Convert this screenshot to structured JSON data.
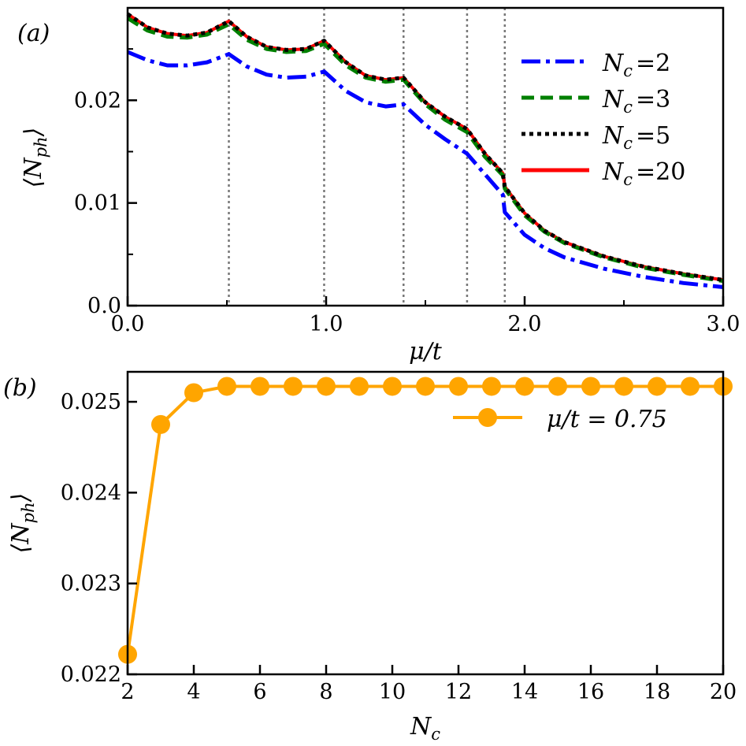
{
  "chart_data": [
    {
      "panel_label": "(a)",
      "type": "line",
      "xlabel": "μ/t",
      "ylabel": "⟨N_ph⟩",
      "ylabel_main": "⟨N",
      "ylabel_sub": "ph",
      "ylabel_close": "⟩",
      "xlim": [
        0.0,
        3.0
      ],
      "ylim": [
        0.0,
        0.029
      ],
      "x_ticks": [
        0.0,
        1.0,
        2.0,
        3.0
      ],
      "x_tick_labels": [
        "0.0",
        "1.0",
        "2.0",
        "3.0"
      ],
      "x_minor_ticks": [
        0.5,
        1.5,
        2.5
      ],
      "y_ticks": [
        0.0,
        0.01,
        0.02
      ],
      "y_tick_labels": [
        "0.0",
        "0.01",
        "0.02"
      ],
      "y_minor_ticks": [
        0.005,
        0.015,
        0.025
      ],
      "vlines": [
        0.51,
        0.99,
        1.39,
        1.71,
        1.9
      ],
      "legend_position": "top-right",
      "series": [
        {
          "name": "N_c =2",
          "legend_sub": "c",
          "legend_value": "=2",
          "color": "#0000ff",
          "style": "dashdot",
          "x": [
            0.0,
            0.1,
            0.2,
            0.3,
            0.4,
            0.51,
            0.6,
            0.7,
            0.8,
            0.9,
            0.99,
            1.1,
            1.2,
            1.3,
            1.39,
            1.5,
            1.6,
            1.71,
            1.8,
            1.89,
            1.9,
            2.0,
            2.1,
            2.2,
            2.4,
            2.6,
            2.8,
            3.0
          ],
          "y": [
            0.0247,
            0.0239,
            0.0234,
            0.0234,
            0.0237,
            0.0245,
            0.0233,
            0.0225,
            0.0222,
            0.0223,
            0.0228,
            0.0209,
            0.0198,
            0.0194,
            0.0196,
            0.0176,
            0.0162,
            0.0148,
            0.0128,
            0.0108,
            0.0091,
            0.0069,
            0.0056,
            0.0047,
            0.0036,
            0.0028,
            0.0022,
            0.0018
          ]
        },
        {
          "name": "N_c =3",
          "legend_sub": "c",
          "legend_value": "=3",
          "color": "#008000",
          "style": "dashed",
          "x": [
            0.0,
            0.1,
            0.2,
            0.3,
            0.4,
            0.51,
            0.6,
            0.7,
            0.8,
            0.9,
            0.99,
            1.1,
            1.2,
            1.3,
            1.39,
            1.5,
            1.6,
            1.71,
            1.8,
            1.89,
            1.9,
            2.0,
            2.1,
            2.2,
            2.4,
            2.6,
            2.8,
            3.0
          ],
          "y": [
            0.028,
            0.0268,
            0.0262,
            0.0261,
            0.0264,
            0.0274,
            0.0259,
            0.025,
            0.0247,
            0.0248,
            0.0255,
            0.0234,
            0.0222,
            0.0218,
            0.022,
            0.0196,
            0.0181,
            0.0169,
            0.0145,
            0.0127,
            0.0114,
            0.0088,
            0.0072,
            0.0061,
            0.0047,
            0.0037,
            0.003,
            0.0024
          ]
        },
        {
          "name": "N_c =5",
          "legend_sub": "c",
          "legend_value": "=5",
          "color": "#000000",
          "style": "dotted",
          "x": [
            0.0,
            0.1,
            0.2,
            0.3,
            0.4,
            0.51,
            0.6,
            0.7,
            0.8,
            0.9,
            0.99,
            1.1,
            1.2,
            1.3,
            1.39,
            1.5,
            1.6,
            1.71,
            1.8,
            1.89,
            1.9,
            2.0,
            2.1,
            2.2,
            2.4,
            2.6,
            2.8,
            3.0
          ],
          "y": [
            0.0284,
            0.0271,
            0.0265,
            0.0263,
            0.0266,
            0.0277,
            0.0262,
            0.0252,
            0.0249,
            0.025,
            0.0258,
            0.0237,
            0.0224,
            0.022,
            0.0222,
            0.0198,
            0.0184,
            0.0172,
            0.0148,
            0.0129,
            0.0116,
            0.009,
            0.0073,
            0.0062,
            0.0048,
            0.0038,
            0.0031,
            0.0025
          ]
        },
        {
          "name": "N_c =20",
          "legend_sub": "c",
          "legend_value": "=20",
          "color": "#ff0000",
          "style": "solid",
          "x": [
            0.0,
            0.1,
            0.2,
            0.3,
            0.4,
            0.51,
            0.6,
            0.7,
            0.8,
            0.9,
            0.99,
            1.1,
            1.2,
            1.3,
            1.39,
            1.5,
            1.6,
            1.71,
            1.8,
            1.89,
            1.9,
            2.0,
            2.1,
            2.2,
            2.4,
            2.6,
            2.8,
            3.0
          ],
          "y": [
            0.0284,
            0.0271,
            0.0265,
            0.0263,
            0.0266,
            0.0277,
            0.0262,
            0.0252,
            0.0249,
            0.025,
            0.0258,
            0.0237,
            0.0224,
            0.022,
            0.0222,
            0.0198,
            0.0184,
            0.0172,
            0.0148,
            0.0129,
            0.0116,
            0.009,
            0.0073,
            0.0062,
            0.0048,
            0.0038,
            0.0031,
            0.0025
          ]
        }
      ]
    },
    {
      "panel_label": "(b)",
      "type": "line",
      "xlabel": "N_c",
      "xlabel_main": "N",
      "xlabel_sub": "c",
      "ylabel": "⟨N_ph⟩",
      "ylabel_main": "⟨N",
      "ylabel_sub": "ph",
      "ylabel_close": "⟩",
      "xlim": [
        2,
        20
      ],
      "ylim": [
        0.022,
        0.02533
      ],
      "x_ticks": [
        2,
        4,
        6,
        8,
        10,
        12,
        14,
        16,
        18,
        20
      ],
      "x_tick_labels": [
        "2",
        "4",
        "6",
        "8",
        "10",
        "12",
        "14",
        "16",
        "18",
        "20"
      ],
      "y_ticks": [
        0.022,
        0.023,
        0.024,
        0.025
      ],
      "y_tick_labels": [
        "0.022",
        "0.023",
        "0.024",
        "0.025"
      ],
      "legend_position": "top-right",
      "series": [
        {
          "name": "μ/t = 0.75",
          "color": "#ffa500",
          "style": "solid-marker",
          "x": [
            2,
            3,
            4,
            5,
            6,
            7,
            8,
            9,
            10,
            11,
            12,
            13,
            14,
            15,
            16,
            17,
            18,
            19,
            20
          ],
          "y": [
            0.02222,
            0.02475,
            0.0251,
            0.02517,
            0.02517,
            0.02517,
            0.02517,
            0.02517,
            0.02517,
            0.02517,
            0.02517,
            0.02517,
            0.02517,
            0.02517,
            0.02517,
            0.02517,
            0.02517,
            0.02517,
            0.02517
          ]
        }
      ]
    }
  ]
}
